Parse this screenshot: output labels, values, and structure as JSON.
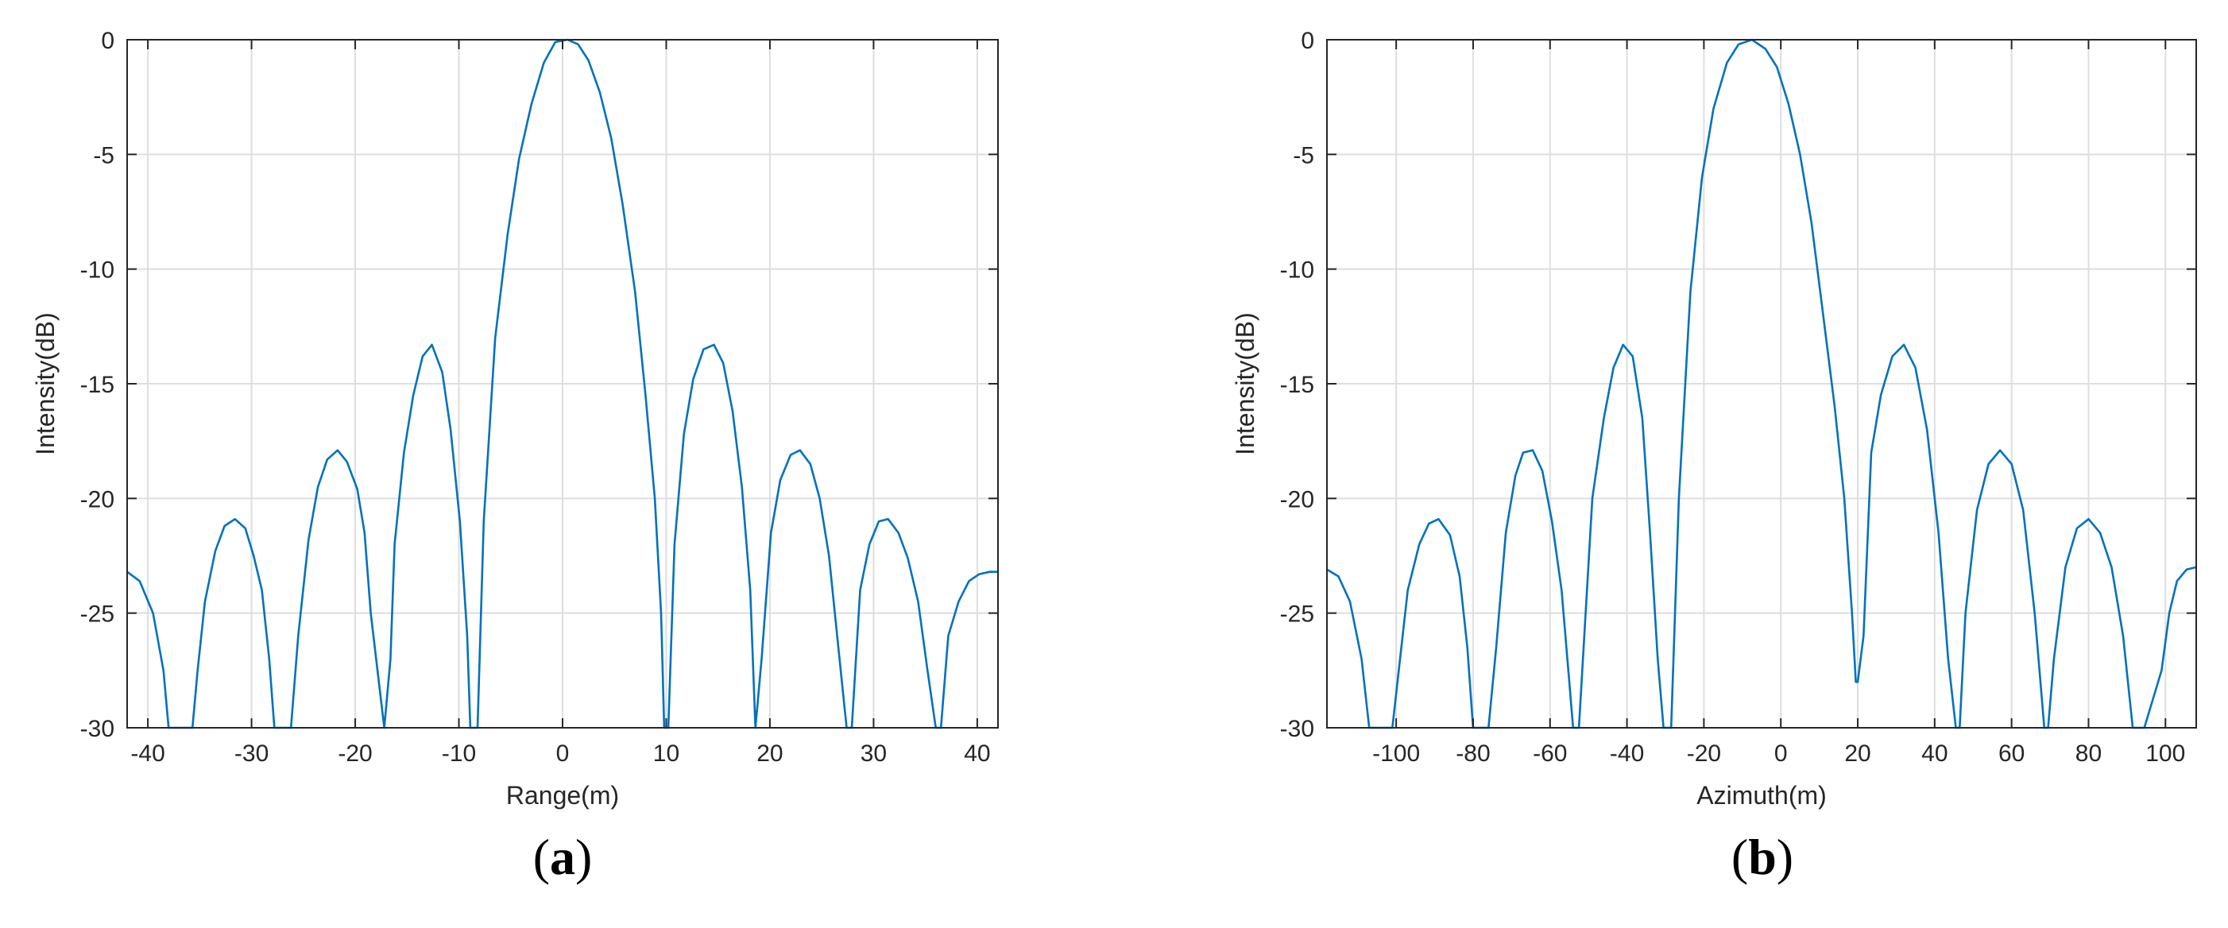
{
  "chart_data": [
    {
      "type": "line",
      "panel": "(a)",
      "panel_letter": "a",
      "title": "",
      "xlabel": "Range(m)",
      "ylabel": "Intensity(dB)",
      "xlim": [
        -42,
        42
      ],
      "ylim": [
        -30,
        0
      ],
      "xticks": [
        -40,
        -30,
        -20,
        -10,
        0,
        10,
        20,
        30,
        40
      ],
      "yticks": [
        0,
        -5,
        -10,
        -15,
        -20,
        -25,
        -30
      ],
      "grid": true,
      "line_color": "#0072BD",
      "series": [
        {
          "x": [
            -42.0,
            -40.8,
            -39.5,
            -38.5,
            -38.0,
            -37.5,
            -35.7,
            -35.2,
            -34.5,
            -33.5,
            -32.6,
            -31.6,
            -30.6,
            -29.8,
            -29.0,
            -28.3,
            -27.8,
            -26.2,
            -25.5,
            -24.5,
            -23.6,
            -22.7,
            -21.7,
            -20.8,
            -19.8,
            -19.1,
            -18.5,
            -17.2,
            -16.6,
            -16.2,
            -15.3,
            -14.4,
            -13.5,
            -12.6,
            -11.6,
            -10.8,
            -9.9,
            -9.2,
            -8.9,
            -8.2,
            -7.6,
            -6.5,
            -5.3,
            -4.2,
            -3.0,
            -1.8,
            -0.7,
            0.5,
            1.5,
            2.5,
            3.6,
            4.7,
            5.8,
            7.0,
            8.0,
            8.9,
            9.5,
            9.8,
            10.2,
            10.8,
            11.7,
            12.6,
            13.6,
            14.6,
            15.5,
            16.4,
            17.3,
            18.1,
            18.6,
            19.2,
            20.1,
            21.0,
            22.0,
            22.9,
            23.9,
            24.8,
            25.7,
            26.6,
            27.4,
            27.9,
            28.7,
            29.6,
            30.5,
            31.4,
            32.4,
            33.3,
            34.3,
            35.2,
            36.0,
            36.5,
            37.2,
            38.2,
            39.2,
            40.2,
            41.2,
            42.0
          ],
          "y": [
            -23.2,
            -23.6,
            -25.0,
            -27.5,
            -30.0,
            -30.0,
            -30.0,
            -27.5,
            -24.5,
            -22.3,
            -21.2,
            -20.9,
            -21.3,
            -22.5,
            -24.0,
            -27.0,
            -30.0,
            -30.0,
            -26.0,
            -21.8,
            -19.5,
            -18.3,
            -17.9,
            -18.4,
            -19.6,
            -21.5,
            -25.0,
            -30.0,
            -27.0,
            -22.0,
            -18.0,
            -15.5,
            -13.8,
            -13.3,
            -14.5,
            -17.0,
            -21.0,
            -26.0,
            -30.0,
            -30.0,
            -21.0,
            -13.0,
            -8.5,
            -5.2,
            -2.8,
            -1.0,
            -0.1,
            0.0,
            -0.2,
            -0.9,
            -2.3,
            -4.3,
            -7.2,
            -11.0,
            -15.5,
            -20.0,
            -25.0,
            -30.0,
            -30.0,
            -22.0,
            -17.2,
            -14.8,
            -13.5,
            -13.3,
            -14.1,
            -16.2,
            -19.5,
            -24.0,
            -30.0,
            -27.0,
            -21.5,
            -19.2,
            -18.1,
            -17.9,
            -18.5,
            -20.0,
            -22.5,
            -26.5,
            -30.0,
            -30.0,
            -24.0,
            -22.0,
            -21.0,
            -20.9,
            -21.5,
            -22.6,
            -24.5,
            -27.5,
            -30.0,
            -30.0,
            -26.0,
            -24.5,
            -23.6,
            -23.3,
            -23.2,
            -23.2
          ]
        }
      ]
    },
    {
      "type": "line",
      "panel": "(b)",
      "panel_letter": "b",
      "title": "",
      "xlabel": "Azimuth(m)",
      "ylabel": "Intensity(dB)",
      "xlim": [
        -118,
        108
      ],
      "ylim": [
        -30,
        0
      ],
      "xticks": [
        -100,
        -80,
        -60,
        -40,
        -20,
        0,
        20,
        40,
        60,
        80,
        100
      ],
      "yticks": [
        0,
        -5,
        -10,
        -15,
        -20,
        -25,
        -30
      ],
      "grid": true,
      "line_color": "#0072BD",
      "series": [
        {
          "x": [
            -118.0,
            -115.0,
            -112.0,
            -109.0,
            -107.0,
            -106.0,
            -101.0,
            -99.0,
            -97.0,
            -94.0,
            -91.5,
            -89.0,
            -86.0,
            -83.5,
            -81.5,
            -80.0,
            -76.0,
            -74.0,
            -71.5,
            -69.0,
            -67.0,
            -64.5,
            -62.0,
            -59.5,
            -57.0,
            -55.0,
            -54.0,
            -52.5,
            -49.0,
            -46.0,
            -43.5,
            -41.0,
            -38.5,
            -36.0,
            -34.0,
            -32.0,
            -30.5,
            -28.5,
            -26.5,
            -23.5,
            -20.5,
            -17.5,
            -14.0,
            -11.0,
            -7.5,
            -4.0,
            -1.0,
            2.0,
            5.0,
            8.0,
            11.0,
            14.0,
            16.5,
            18.5,
            19.5,
            20.0,
            21.5,
            23.5,
            26.0,
            29.0,
            32.0,
            35.0,
            38.0,
            41.0,
            43.5,
            45.5,
            46.5,
            48.0,
            51.0,
            54.0,
            57.0,
            60.0,
            63.0,
            66.0,
            68.5,
            69.5,
            71.0,
            74.0,
            77.0,
            80.0,
            83.0,
            86.0,
            89.0,
            91.5,
            93.0,
            94.5,
            99.0,
            101.0,
            103.0,
            105.5,
            108.0
          ],
          "y": [
            -23.1,
            -23.4,
            -24.5,
            -27.0,
            -30.0,
            -30.0,
            -30.0,
            -27.0,
            -24.0,
            -22.0,
            -21.1,
            -20.9,
            -21.6,
            -23.4,
            -26.5,
            -30.0,
            -30.0,
            -26.5,
            -21.5,
            -19.0,
            -18.0,
            -17.9,
            -18.8,
            -21.0,
            -24.0,
            -28.0,
            -30.0,
            -30.0,
            -20.0,
            -16.5,
            -14.3,
            -13.3,
            -13.8,
            -16.5,
            -21.5,
            -27.0,
            -30.0,
            -30.0,
            -20.0,
            -11.0,
            -6.0,
            -3.0,
            -1.0,
            -0.2,
            0.0,
            -0.4,
            -1.2,
            -2.8,
            -5.0,
            -8.0,
            -12.0,
            -16.0,
            -20.0,
            -25.0,
            -28.0,
            -28.0,
            -26.0,
            -18.0,
            -15.5,
            -13.8,
            -13.3,
            -14.3,
            -17.0,
            -21.5,
            -27.0,
            -30.0,
            -30.0,
            -25.0,
            -20.5,
            -18.5,
            -17.9,
            -18.5,
            -20.5,
            -25.0,
            -30.0,
            -30.0,
            -27.0,
            -23.0,
            -21.3,
            -20.9,
            -21.5,
            -23.0,
            -26.0,
            -30.0,
            -30.0,
            -30.0,
            -27.5,
            -25.0,
            -23.6,
            -23.1,
            -23.0
          ]
        }
      ]
    }
  ]
}
